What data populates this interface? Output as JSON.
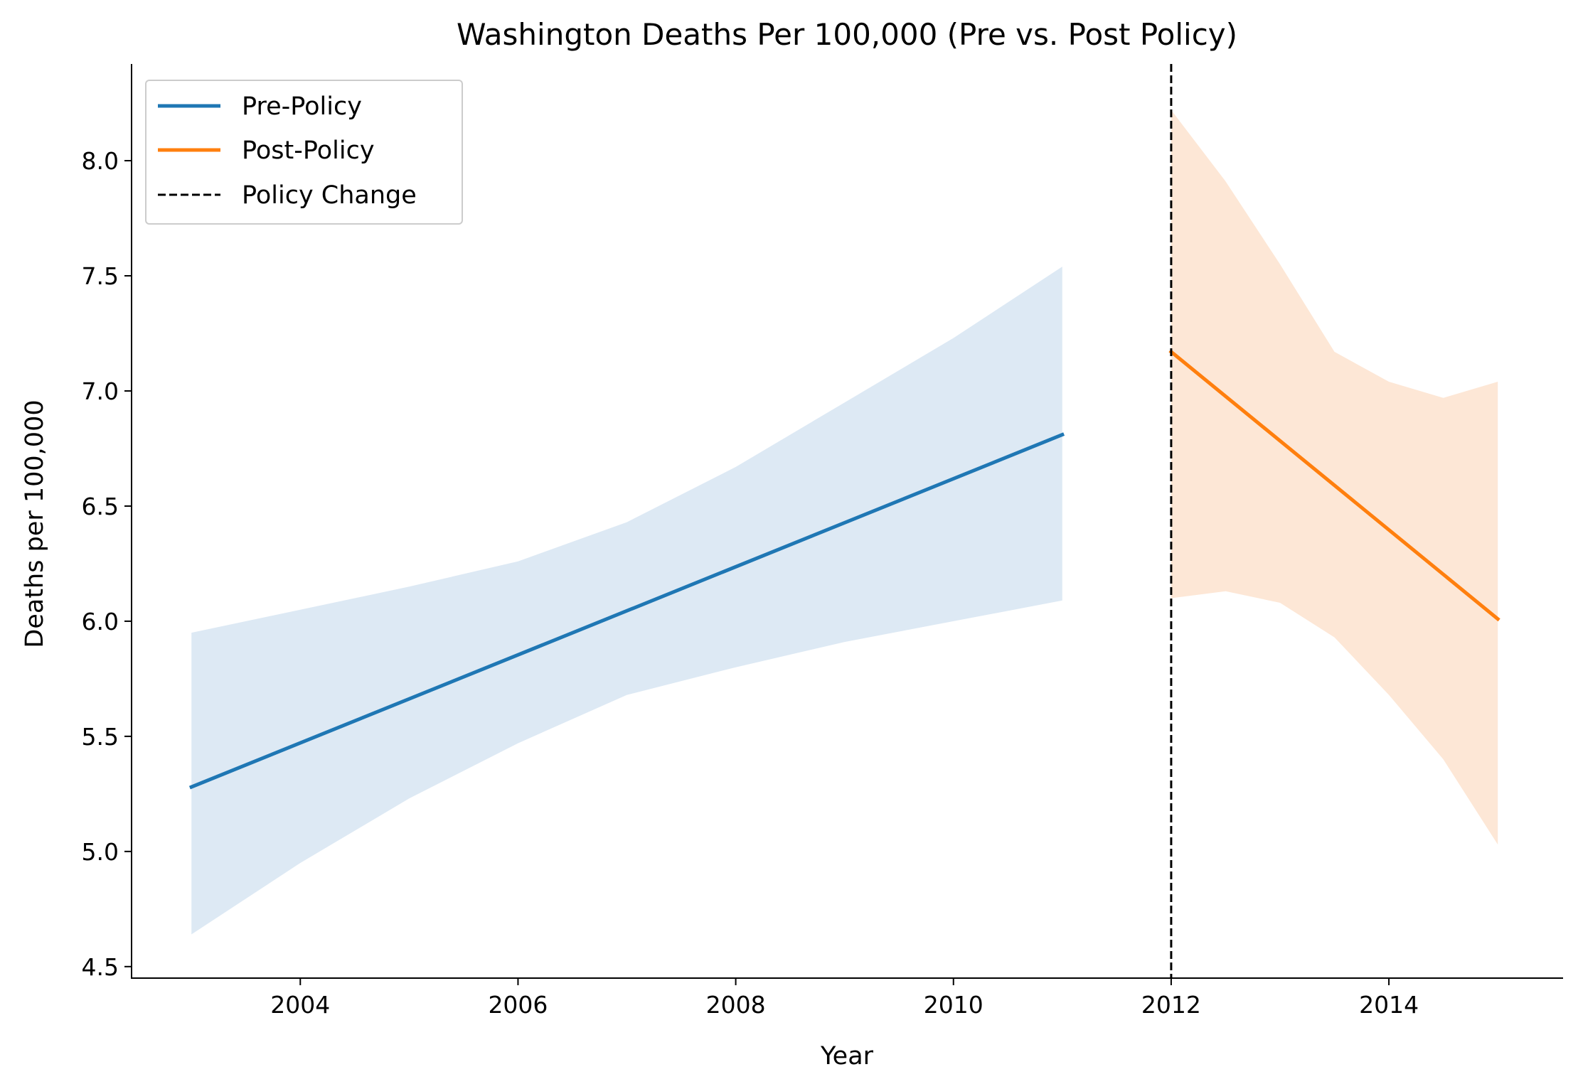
{
  "chart_data": {
    "type": "line",
    "title": "Washington Deaths Per 100,000 (Pre vs. Post Policy)",
    "xlabel": "Year",
    "ylabel": "Deaths per 100,000",
    "xlim": [
      2002.45,
      2015.6
    ],
    "ylim": [
      4.45,
      8.42
    ],
    "xticks": [
      2004,
      2006,
      2008,
      2010,
      2012,
      2014
    ],
    "xtick_labels": [
      "2004",
      "2006",
      "2008",
      "2010",
      "2012",
      "2014"
    ],
    "yticks": [
      4.5,
      5.0,
      5.5,
      6.0,
      6.5,
      7.0,
      7.5,
      8.0
    ],
    "ytick_labels": [
      "4.5",
      "5.0",
      "5.5",
      "6.0",
      "6.5",
      "7.0",
      "7.5",
      "8.0"
    ],
    "grid": false,
    "legend_position": "top-left",
    "series": [
      {
        "name": "Pre-Policy",
        "color": "#1f77b4",
        "band_color": "#dde9f4",
        "x": [
          2003,
          2011
        ],
        "y": [
          5.28,
          6.81
        ],
        "band_x": [
          2003,
          2004,
          2005,
          2006,
          2007,
          2008,
          2009,
          2010,
          2011
        ],
        "band_upper": [
          5.95,
          6.05,
          6.15,
          6.26,
          6.43,
          6.67,
          6.95,
          7.23,
          7.54
        ],
        "band_lower": [
          4.64,
          4.95,
          5.23,
          5.47,
          5.68,
          5.8,
          5.91,
          6.0,
          6.09
        ]
      },
      {
        "name": "Post-Policy",
        "color": "#ff7f0e",
        "band_color": "#fde7d6",
        "x": [
          2012,
          2015
        ],
        "y": [
          7.17,
          6.01
        ],
        "band_x": [
          2012,
          2012.5,
          2013,
          2013.5,
          2014,
          2014.5,
          2015
        ],
        "band_upper": [
          8.22,
          7.91,
          7.55,
          7.17,
          7.04,
          6.97,
          7.04
        ],
        "band_lower": [
          6.1,
          6.13,
          6.08,
          5.93,
          5.68,
          5.4,
          5.03
        ]
      }
    ],
    "reference_lines": [
      {
        "name": "Policy Change",
        "x": 2012,
        "color": "#000000",
        "style": "dashed"
      }
    ]
  }
}
